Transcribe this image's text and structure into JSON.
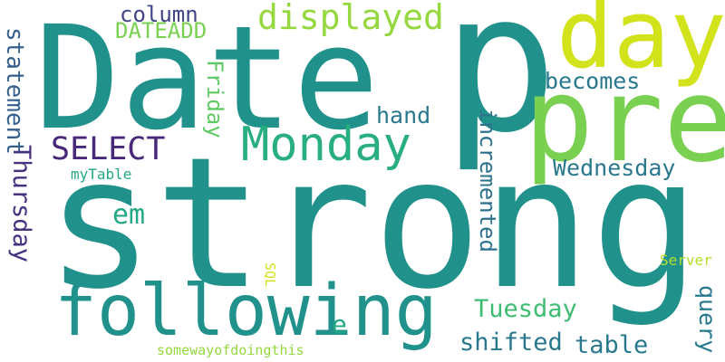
{
  "words": [
    {
      "text": "strong",
      "color": "#21918c"
    },
    {
      "text": "Date",
      "color": "#21918c"
    },
    {
      "text": "p",
      "color": "#21918c"
    },
    {
      "text": "pre",
      "color": "#7ad151"
    },
    {
      "text": "day",
      "color": "#d2e21b"
    },
    {
      "text": "following",
      "color": "#21918c"
    },
    {
      "text": "Monday",
      "color": "#28ae80"
    },
    {
      "text": "displayed",
      "color": "#95d840"
    },
    {
      "text": "SELECT",
      "color": "#482878"
    },
    {
      "text": "column",
      "color": "#414487"
    },
    {
      "text": "DATEADD",
      "color": "#7ad151"
    },
    {
      "text": "becomes",
      "color": "#2a788e"
    },
    {
      "text": "hand",
      "color": "#2a788e"
    },
    {
      "text": "Wednesday",
      "color": "#2a788e"
    },
    {
      "text": "em",
      "color": "#22a884"
    },
    {
      "text": "Tuesday",
      "color": "#3fbc73"
    },
    {
      "text": "shifted",
      "color": "#2a788e"
    },
    {
      "text": "table",
      "color": "#2a788e"
    },
    {
      "text": "e",
      "color": "#22a884"
    },
    {
      "text": "myTable",
      "color": "#22a884"
    },
    {
      "text": "Server",
      "color": "#b5de2b"
    },
    {
      "text": "somewayofdoingthis",
      "color": "#95d840"
    },
    {
      "text": "statement",
      "color": "#355f8d"
    },
    {
      "text": "Thursday",
      "color": "#46327e"
    },
    {
      "text": "Friday",
      "color": "#5ec962"
    },
    {
      "text": "incremented",
      "color": "#2c728e"
    },
    {
      "text": "query",
      "color": "#2a788e"
    },
    {
      "text": "SQL",
      "color": "#d2e21b"
    }
  ]
}
